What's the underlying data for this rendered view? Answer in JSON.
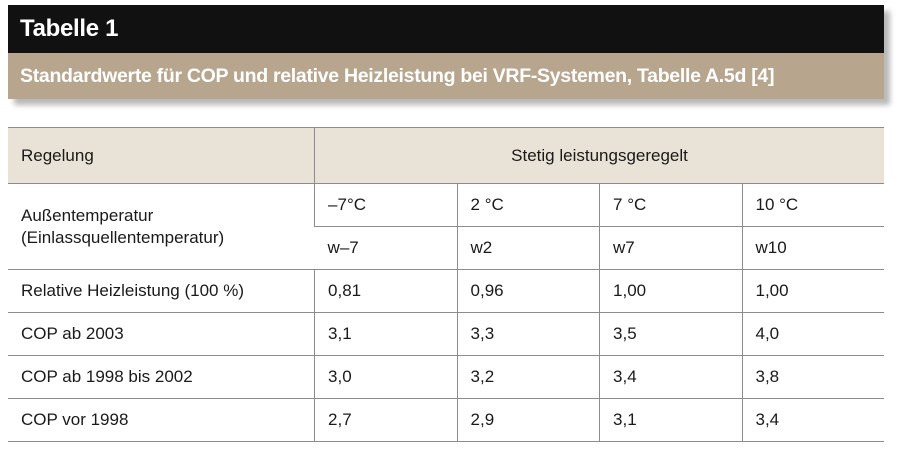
{
  "caption": {
    "title": "Tabelle 1",
    "subtitle": "Standardwerte für COP und relative Heizleistung bei VRF-Systemen, Tabelle A.5d [4]"
  },
  "table": {
    "header": {
      "label": "Regelung",
      "group": "Stetig leistungsgeregelt"
    },
    "temperature_row": {
      "label_line1": "Außentemperatur",
      "label_line2": "(Einlassquellentemperatur)",
      "temperatures": [
        "–7°C",
        "2 °C",
        "7 °C",
        "10 °C"
      ],
      "codes": [
        "w–7",
        "w2",
        "w7",
        "w10"
      ]
    },
    "rows": [
      {
        "label": "Relative Heizleistung (100 %)",
        "values": [
          "0,81",
          "0,96",
          "1,00",
          "1,00"
        ]
      },
      {
        "label": "COP ab 2003",
        "values": [
          "3,1",
          "3,3",
          "3,5",
          "4,0"
        ]
      },
      {
        "label": "COP ab 1998 bis 2002",
        "values": [
          "3,0",
          "3,2",
          "3,4",
          "3,8"
        ]
      },
      {
        "label": "COP vor 1998",
        "values": [
          "2,7",
          "2,9",
          "3,1",
          "3,4"
        ]
      }
    ]
  },
  "colors": {
    "title_bar": "#111111",
    "subtitle_bar": "#b7a58d",
    "header_row": "#e9e2d6",
    "rule": "#8c8c8c"
  }
}
